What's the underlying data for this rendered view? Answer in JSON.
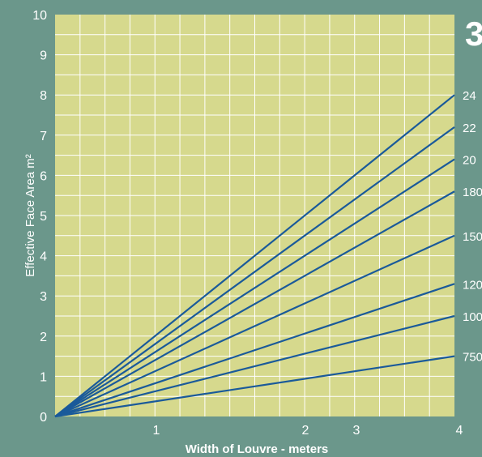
{
  "colors": {
    "background": "#6b978b",
    "plot_area": "#d6d98d",
    "grid": "#ffffff",
    "line": "#1a5a9a",
    "text": "#ffffff"
  },
  "corner_label": "3",
  "chart_data": {
    "type": "line",
    "title": "",
    "xlabel": "Width of Louvre - meters",
    "ylabel": "Effective Face Area m²",
    "xlim": [
      0,
      4
    ],
    "ylim": [
      0,
      10
    ],
    "grid": true,
    "x_ticks": [
      {
        "value": 1,
        "label": "1"
      },
      {
        "value": 2,
        "label": "2"
      },
      {
        "value": 3,
        "label": "3"
      },
      {
        "value": 4,
        "label": "4"
      }
    ],
    "y_ticks": [
      "0",
      "1",
      "2",
      "3",
      "4",
      "5",
      "6",
      "7",
      "8",
      "9",
      "10"
    ],
    "series": [
      {
        "name": "24",
        "x": [
          0,
          4
        ],
        "y": [
          0,
          8.0
        ]
      },
      {
        "name": "22",
        "x": [
          0,
          4
        ],
        "y": [
          0,
          7.2
        ]
      },
      {
        "name": "20",
        "x": [
          0,
          4
        ],
        "y": [
          0,
          6.4
        ]
      },
      {
        "name": "180",
        "x": [
          0,
          4
        ],
        "y": [
          0,
          5.6
        ]
      },
      {
        "name": "150",
        "x": [
          0,
          4
        ],
        "y": [
          0,
          4.5
        ]
      },
      {
        "name": "120",
        "x": [
          0,
          4
        ],
        "y": [
          0,
          3.3
        ]
      },
      {
        "name": "100",
        "x": [
          0,
          4
        ],
        "y": [
          0,
          2.5
        ]
      },
      {
        "name": "750",
        "x": [
          0,
          4
        ],
        "y": [
          0,
          1.5
        ]
      }
    ]
  }
}
